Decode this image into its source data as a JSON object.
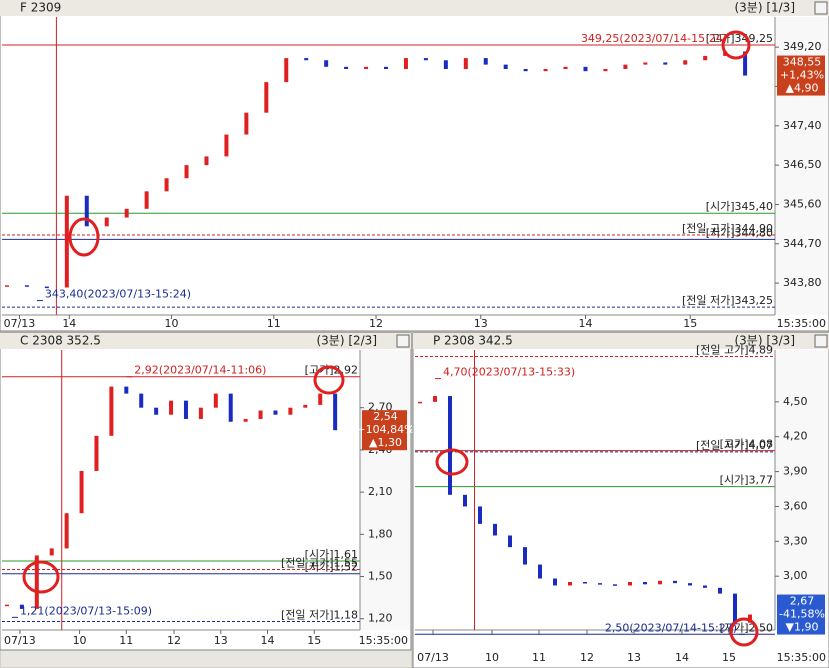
{
  "chart_data": [
    {
      "type": "candlestick",
      "title": "F 2309",
      "period": "(3분) [1/3]",
      "up_color": "#e02020",
      "down_color": "#1a2cc0",
      "x": [
        1,
        5,
        9,
        13,
        17,
        21,
        25,
        29,
        33,
        37,
        41,
        45,
        49,
        53,
        57,
        61,
        65,
        69,
        73,
        77,
        81,
        85,
        89,
        93,
        97,
        101,
        105,
        109,
        113,
        117,
        121,
        125,
        129,
        133,
        137,
        141,
        145,
        149
      ],
      "values": [
        343.75,
        343.72,
        343.7,
        345.8,
        345.1,
        345.3,
        345.5,
        345.9,
        346.2,
        346.5,
        346.7,
        347.2,
        347.7,
        348.4,
        348.95,
        348.9,
        348.75,
        348.7,
        348.75,
        348.7,
        348.95,
        348.9,
        348.7,
        348.95,
        348.8,
        348.7,
        348.65,
        348.7,
        348.75,
        348.65,
        348.7,
        348.8,
        348.85,
        348.8,
        348.9,
        349.0,
        349.1,
        348.55
      ],
      "xlim": [
        0,
        155
      ],
      "xticks": [
        {
          "value": 3.5,
          "label": "07/13"
        },
        {
          "value": 13.5,
          "label": "14"
        },
        {
          "value": 34,
          "label": "10"
        },
        {
          "value": 54.5,
          "label": "11"
        },
        {
          "value": 75,
          "label": "12"
        },
        {
          "value": 96,
          "label": "13"
        },
        {
          "value": 117,
          "label": "14"
        },
        {
          "value": 138,
          "label": "15"
        }
      ],
      "time_label": "15:35:00",
      "ylim": [
        343.07,
        349.89
      ],
      "yticks": [
        {
          "value": 349.2,
          "label": "349,20"
        },
        {
          "value": 348.3,
          "label": "348,30"
        },
        {
          "value": 347.4,
          "label": "347,40"
        },
        {
          "value": 346.5,
          "label": "346,50"
        },
        {
          "value": 345.6,
          "label": "345,60"
        },
        {
          "value": 344.7,
          "label": "344,70"
        },
        {
          "value": 343.8,
          "label": "343,80"
        }
      ],
      "ref_lines": [
        {
          "value": 349.25,
          "label": "[고가]349,25",
          "color": "#d02020",
          "dashed": false
        },
        {
          "value": 345.4,
          "label": "[시가]345,40",
          "color": "#2a9a2a",
          "dashed": false
        },
        {
          "value": 344.9,
          "label": "[전일 고가]344,90",
          "color": "#d02020",
          "dashed": true
        },
        {
          "value": 344.8,
          "label": "[저가]344,80",
          "color": "#1a2c90",
          "dashed": false
        },
        {
          "value": 343.25,
          "label": "[전일 저가]343,25",
          "color": "#1a2c90",
          "dashed": true
        }
      ],
      "extremes": [
        {
          "x": 147,
          "value": 349.25,
          "label": "349,25(2023/07/14-15:24)",
          "color": "#d02020"
        },
        {
          "x": 7,
          "value": 343.4,
          "label": "343,40(2023/07/13-15:24)",
          "color": "#1a2c90"
        }
      ],
      "last": {
        "value": 348.55,
        "label": "348,55"
      },
      "change_pct": {
        "value": 1.43,
        "label": "+1,43%"
      },
      "change": {
        "value": 4.9,
        "label": "▲4,90"
      },
      "box_color": "#c8401c"
    },
    {
      "type": "candlestick",
      "title": "C 2308 352.5",
      "period": "(3분) [2/3]",
      "up_color": "#e02020",
      "down_color": "#1a2cc0",
      "x": [
        1,
        4,
        7,
        10,
        13,
        16,
        19,
        22,
        25,
        28,
        31,
        34,
        37,
        40,
        43,
        46,
        49,
        52,
        55,
        58,
        61,
        64,
        67
      ],
      "values": [
        1.3,
        1.27,
        1.65,
        1.7,
        1.95,
        2.25,
        2.5,
        2.85,
        2.8,
        2.7,
        2.65,
        2.75,
        2.62,
        2.7,
        2.8,
        2.6,
        2.62,
        2.68,
        2.65,
        2.7,
        2.72,
        2.8,
        2.54
      ],
      "xlim": [
        0,
        72
      ],
      "xticks": [
        {
          "value": 3.6,
          "label": "07/13"
        },
        {
          "value": 15.6,
          "label": "10"
        },
        {
          "value": 25,
          "label": "11"
        },
        {
          "value": 34.6,
          "label": "12"
        },
        {
          "value": 44,
          "label": "13"
        },
        {
          "value": 53.4,
          "label": "14"
        },
        {
          "value": 62.8,
          "label": "15"
        }
      ],
      "time_label": "15:35:00",
      "ylim": [
        1.12,
        3.11
      ],
      "yticks": [
        {
          "value": 2.7,
          "label": "2,70"
        },
        {
          "value": 2.4,
          "label": "2,40"
        },
        {
          "value": 2.1,
          "label": "2,10"
        },
        {
          "value": 1.8,
          "label": "1,80"
        },
        {
          "value": 1.5,
          "label": "1,50"
        },
        {
          "value": 1.2,
          "label": "1,20"
        }
      ],
      "ref_lines": [
        {
          "value": 2.92,
          "label": "[고가]2,92",
          "color": "#d02020",
          "dashed": false
        },
        {
          "value": 1.61,
          "label": "[시가]1,61",
          "color": "#2a9a2a",
          "dashed": false
        },
        {
          "value": 1.55,
          "label": "[전일 고가]1,55",
          "color": "#d02020",
          "dashed": true
        },
        {
          "value": 1.52,
          "label": "[저가]1,52",
          "color": "#1a2c90",
          "dashed": false
        },
        {
          "value": 1.18,
          "label": "[전일 저가]1,18",
          "color": "#1a2c90",
          "dashed": true
        }
      ],
      "extremes": [
        {
          "x": 25,
          "value": 2.92,
          "label": "2,92(2023/07/14-11:06)",
          "color": "#d02020"
        },
        {
          "x": 2,
          "value": 1.21,
          "label": "1,21(2023/07/13-15:09)",
          "color": "#1a2c90"
        }
      ],
      "last": {
        "value": 2.54,
        "label": "2,54"
      },
      "change_pct": {
        "value": 104.84,
        "label": "+104,84%"
      },
      "change": {
        "value": 1.3,
        "label": "▲1,30"
      },
      "box_color": "#c8401c"
    },
    {
      "type": "candlestick",
      "title": "P 2308 342.5",
      "period": "(3분) [3/3]",
      "up_color": "#e02020",
      "down_color": "#1a2cc0",
      "x": [
        1,
        4,
        7,
        10,
        13,
        16,
        19,
        22,
        25,
        28,
        31,
        34,
        37,
        40,
        43,
        46,
        49,
        52,
        55,
        58,
        61,
        64,
        67
      ],
      "values": [
        4.5,
        4.55,
        3.7,
        3.6,
        3.45,
        3.35,
        3.25,
        3.1,
        2.98,
        2.92,
        2.95,
        2.94,
        2.93,
        2.92,
        2.95,
        2.93,
        2.96,
        2.94,
        2.92,
        2.9,
        2.85,
        2.6,
        2.67
      ],
      "xlim": [
        0,
        72
      ],
      "xticks": [
        {
          "value": 3.6,
          "label": "07/13"
        },
        {
          "value": 15.4,
          "label": "10"
        },
        {
          "value": 24.8,
          "label": "11"
        },
        {
          "value": 34.4,
          "label": "12"
        },
        {
          "value": 43.8,
          "label": "13"
        },
        {
          "value": 53.4,
          "label": "14"
        },
        {
          "value": 62.8,
          "label": "15"
        }
      ],
      "time_label": "15:35:00",
      "ylim": [
        2.537,
        4.946
      ],
      "yticks": [
        {
          "value": 4.5,
          "label": "4,50"
        },
        {
          "value": 4.2,
          "label": "4,20"
        },
        {
          "value": 3.9,
          "label": "3,90"
        },
        {
          "value": 3.6,
          "label": "3,60"
        },
        {
          "value": 3.3,
          "label": "3,30"
        },
        {
          "value": 3,
          "label": "3,00"
        }
      ],
      "ref_lines": [
        {
          "value": 4.89,
          "label": "[전일 고가]4,89",
          "color": "#d02020",
          "dashed": true
        },
        {
          "value": 4.08,
          "label": "[고가]4,08",
          "color": "#d02020",
          "dashed": false
        },
        {
          "value": 4.07,
          "label": "[전일 저가]4,07",
          "color": "#1a2c90",
          "dashed": true
        },
        {
          "value": 3.77,
          "label": "[시가]3,77",
          "color": "#2a9a2a",
          "dashed": false
        },
        {
          "value": 2.5,
          "label": "[저가]2,50",
          "color": "#1a2c90",
          "dashed": false
        }
      ],
      "extremes": [
        {
          "x": 4,
          "value": 4.7,
          "label": "4,70(2023/07/13-15:33)",
          "color": "#d02020"
        },
        {
          "x": 66,
          "value": 2.5,
          "label": "2,50(2023/07/14-15:27)",
          "color": "#1a2c90"
        }
      ],
      "last": {
        "value": 2.67,
        "label": "2,67"
      },
      "change_pct": {
        "value": -41.58,
        "label": "-41,58%"
      },
      "change": {
        "value": -1.9,
        "label": "▼1,90"
      },
      "box_color": "#2a5ad0"
    }
  ]
}
